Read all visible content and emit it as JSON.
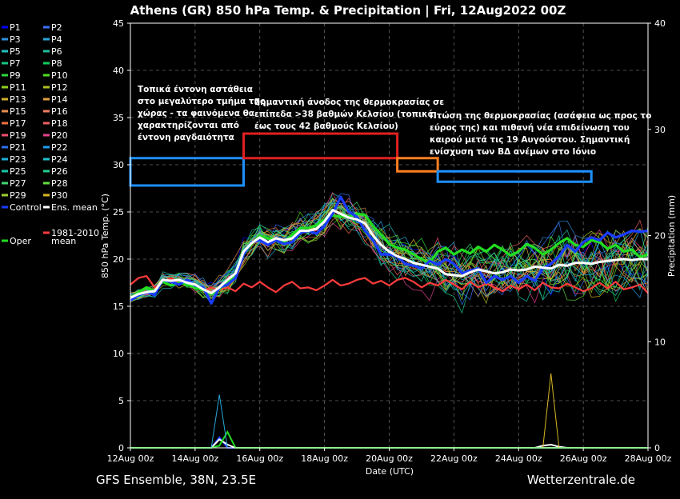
{
  "chart_data": {
    "type": "line",
    "title": "Athens  (GR)  850 hPa Temp. & Precipitation | Fri, 12Aug2022 00Z",
    "ylabel": "850 hPa Temp. (°C)",
    "y2label": "Precipitation (mm)",
    "xlabel": "Date (UTC)",
    "ylim": [
      0,
      45
    ],
    "y2lim": [
      0,
      40
    ],
    "yticks": [
      "0",
      "5",
      "10",
      "15",
      "20",
      "25",
      "30",
      "35",
      "40",
      "45"
    ],
    "y2ticks": [
      "0",
      "10",
      "20",
      "30",
      "40"
    ],
    "xticks": [
      "12Aug 00z",
      "14Aug 00z",
      "16Aug 00z",
      "18Aug 00z",
      "20Aug 00z",
      "22Aug 00z",
      "24Aug 00z",
      "26Aug 00z",
      "28Aug 00z"
    ],
    "x_days": [
      0,
      0.25,
      0.5,
      0.75,
      1,
      1.25,
      1.5,
      1.75,
      2,
      2.25,
      2.5,
      2.75,
      3,
      3.25,
      3.5,
      3.75,
      4,
      4.25,
      4.5,
      4.75,
      5,
      5.25,
      5.5,
      5.75,
      6,
      6.25,
      6.5,
      6.75,
      7,
      7.25,
      7.5,
      7.75,
      8,
      8.25,
      8.5,
      8.75,
      9,
      9.25,
      9.5,
      9.75,
      10,
      10.25,
      10.5,
      10.75,
      11,
      11.25,
      11.5,
      11.75,
      12,
      12.25,
      12.5,
      12.75,
      13,
      13.25,
      13.5,
      13.75,
      14,
      14.25,
      14.5,
      14.75,
      15,
      15.25,
      15.5,
      15.75,
      16
    ],
    "grid": true,
    "legend_position": "left-outside",
    "footer_left": "GFS Ensemble, 38N, 23.5E",
    "footer_right": "Wetterzentrale.de",
    "legend": [
      {
        "label": "P1",
        "color": "#0000ff"
      },
      {
        "label": "P2",
        "color": "#3f6fff"
      },
      {
        "label": "P3",
        "color": "#2f8fdf"
      },
      {
        "label": "P4",
        "color": "#27a7d7"
      },
      {
        "label": "P5",
        "color": "#1fbfbf"
      },
      {
        "label": "P6",
        "color": "#1fbf9f"
      },
      {
        "label": "P7",
        "color": "#17c77f"
      },
      {
        "label": "P8",
        "color": "#0fcf5f"
      },
      {
        "label": "P9",
        "color": "#2fd73f"
      },
      {
        "label": "P10",
        "color": "#4fdf1f"
      },
      {
        "label": "P11",
        "color": "#8fcf1f"
      },
      {
        "label": "P12",
        "color": "#afbf1f"
      },
      {
        "label": "P13",
        "color": "#cfaf2f"
      },
      {
        "label": "P14",
        "color": "#df9f3f"
      },
      {
        "label": "P15",
        "color": "#e78f4f"
      },
      {
        "label": "P16",
        "color": "#ef7f5f"
      },
      {
        "label": "P17",
        "color": "#ef6f3f"
      },
      {
        "label": "P18",
        "color": "#ef5f5f"
      },
      {
        "label": "P19",
        "color": "#ef4f6f"
      },
      {
        "label": "P20",
        "color": "#e73f8f"
      },
      {
        "label": "P21",
        "color": "#2f6fef"
      },
      {
        "label": "P22",
        "color": "#1f9fef"
      },
      {
        "label": "P23",
        "color": "#1fafd7"
      },
      {
        "label": "P24",
        "color": "#1fbfcf"
      },
      {
        "label": "P25",
        "color": "#17c7a7"
      },
      {
        "label": "P26",
        "color": "#1fcf8f"
      },
      {
        "label": "P27",
        "color": "#3fd76f"
      },
      {
        "label": "P28",
        "color": "#5fdf3f"
      },
      {
        "label": "P29",
        "color": "#9fcf2f"
      },
      {
        "label": "P30",
        "color": "#d7b71f"
      },
      {
        "label": "Control",
        "color": "#1a3cff"
      },
      {
        "label": "Ens. mean",
        "color": "#ffffff"
      },
      {
        "label": "Oper",
        "color": "#22dd22"
      },
      {
        "label": "1981-2010 mean",
        "color": "#ff3b3b"
      }
    ],
    "series": [
      {
        "name": "Control",
        "color": "#1a3cff",
        "width": 3.2,
        "values": [
          15.6,
          16.2,
          16.5,
          16.2,
          17.8,
          17.6,
          17.3,
          17.8,
          17.2,
          17.0,
          15.3,
          17.0,
          17.3,
          18.0,
          20.5,
          21.8,
          22.0,
          21.5,
          22.0,
          21.6,
          21.8,
          22.8,
          23.0,
          22.7,
          23.5,
          24.8,
          26.6,
          25.0,
          24.5,
          23.0,
          22.0,
          20.5,
          20.5,
          20.3,
          19.5,
          19.3,
          19.0,
          19.8,
          19.4,
          20.0,
          19.5,
          18.5,
          18.8,
          19.0,
          17.5,
          18.2,
          17.8,
          18.2,
          17.5,
          18.2,
          17.7,
          19.0,
          19.5,
          20.3,
          21.5,
          20.8,
          21.8,
          22.3,
          22.0,
          22.8,
          22.3,
          22.6,
          23.0,
          22.9,
          23.0
        ]
      },
      {
        "name": "Ens. mean",
        "color": "#ffffff",
        "width": 3,
        "values": [
          15.9,
          16.3,
          16.5,
          16.6,
          17.8,
          17.7,
          17.8,
          17.5,
          17.3,
          16.8,
          16.4,
          17.0,
          17.8,
          18.5,
          20.8,
          21.7,
          22.3,
          21.8,
          22.2,
          22.0,
          22.2,
          23.0,
          23.0,
          23.2,
          24.0,
          25.2,
          24.8,
          24.4,
          24.2,
          23.8,
          22.5,
          21.5,
          20.8,
          20.3,
          20.0,
          19.6,
          19.4,
          19.2,
          19.0,
          18.4,
          18.3,
          18.2,
          18.6,
          18.9,
          18.7,
          18.5,
          18.6,
          18.9,
          18.8,
          18.9,
          19.2,
          19.1,
          19.0,
          19.4,
          19.3,
          19.6,
          19.6,
          19.5,
          19.7,
          19.8,
          19.9,
          20.0,
          19.9,
          20.0,
          20.0
        ]
      },
      {
        "name": "Oper",
        "color": "#22dd22",
        "width": 3.2,
        "values": [
          15.9,
          16.5,
          17.0,
          16.6,
          17.6,
          17.2,
          17.5,
          17.3,
          17.0,
          16.7,
          16.3,
          16.8,
          17.6,
          18.3,
          20.5,
          21.6,
          22.5,
          22.2,
          22.1,
          21.8,
          22.6,
          23.3,
          23.3,
          23.6,
          24.2,
          24.6,
          24.5,
          24.5,
          24.8,
          24.7,
          23.5,
          22.6,
          21.6,
          21.2,
          21.0,
          20.5,
          20.0,
          19.6,
          20.8,
          21.2,
          20.5,
          21.0,
          20.6,
          21.3,
          20.8,
          21.5,
          21.0,
          20.4,
          20.8,
          21.6,
          21.2,
          20.5,
          21.0,
          21.7,
          22.2,
          21.5,
          21.3,
          22.0,
          21.8,
          21.1,
          21.5,
          20.8,
          21.0,
          20.2,
          20.5
        ]
      },
      {
        "name": "1981-2010 mean",
        "color": "#ff3b3b",
        "width": 2.2,
        "values": [
          17.3,
          18.0,
          18.2,
          17.0,
          17.5,
          18.0,
          17.5,
          17.8,
          17.2,
          16.6,
          17.0,
          16.7,
          17.0,
          16.6,
          17.4,
          17.0,
          17.6,
          17.0,
          16.5,
          17.2,
          17.6,
          16.9,
          17.0,
          16.7,
          17.2,
          17.8,
          17.2,
          17.4,
          17.8,
          18.0,
          17.4,
          17.7,
          17.2,
          17.8,
          18.0,
          17.6,
          17.0,
          17.5,
          17.2,
          17.8,
          17.3,
          16.8,
          17.6,
          17.0,
          17.4,
          17.0,
          16.6,
          17.2,
          16.8,
          17.3,
          16.7,
          17.5,
          17.0,
          16.9,
          17.4,
          17.0,
          16.6,
          16.9,
          17.5,
          16.9,
          17.6,
          16.8,
          17.0,
          17.3,
          16.4
        ]
      }
    ],
    "precip_mm": {
      "Control": [
        0,
        0,
        0,
        0,
        0,
        0,
        0,
        0,
        0,
        0,
        0,
        1.0,
        0,
        0,
        0,
        0,
        0,
        0,
        0,
        0,
        0,
        0,
        0,
        0,
        0,
        0,
        0,
        0,
        0,
        0,
        0,
        0,
        0,
        0,
        0,
        0,
        0,
        0,
        0,
        0,
        0,
        0,
        0,
        0,
        0,
        0,
        0,
        0,
        0,
        0,
        0,
        0,
        0,
        0,
        0,
        0,
        0,
        0,
        0,
        0,
        0,
        0,
        0,
        0,
        0
      ],
      "Ens. mean": [
        0,
        0,
        0,
        0,
        0,
        0,
        0,
        0,
        0,
        0,
        0,
        0.8,
        0.3,
        0,
        0,
        0,
        0,
        0,
        0,
        0,
        0,
        0,
        0,
        0,
        0,
        0,
        0,
        0,
        0,
        0,
        0,
        0,
        0,
        0,
        0,
        0,
        0,
        0,
        0,
        0,
        0,
        0,
        0,
        0,
        0,
        0,
        0,
        0,
        0,
        0,
        0,
        0.2,
        0.3,
        0.1,
        0,
        0,
        0,
        0,
        0,
        0,
        0,
        0,
        0,
        0,
        0
      ],
      "Oper": [
        0,
        0,
        0,
        0,
        0,
        0,
        0,
        0,
        0,
        0,
        0,
        0.2,
        1.5,
        0,
        0,
        0,
        0,
        0,
        0,
        0,
        0,
        0,
        0,
        0,
        0,
        0,
        0,
        0,
        0,
        0,
        0,
        0,
        0,
        0,
        0,
        0,
        0,
        0,
        0,
        0,
        0,
        0,
        0,
        0,
        0,
        0,
        0,
        0,
        0,
        0,
        0,
        0,
        0,
        0,
        0,
        0,
        0,
        0,
        0,
        0,
        0,
        0,
        0,
        0,
        0
      ],
      "P4": [
        0,
        0,
        0,
        0,
        0,
        0,
        0,
        0,
        0,
        0,
        0,
        5.0,
        0,
        0,
        0,
        0,
        0,
        0,
        0,
        0,
        0,
        0,
        0,
        0,
        0,
        0,
        0,
        0,
        0,
        0,
        0,
        0,
        0,
        0,
        0,
        0,
        0,
        0,
        0,
        0,
        0,
        0,
        0,
        0,
        0,
        0,
        0,
        0,
        0,
        0,
        0,
        0,
        0,
        0,
        0,
        0,
        0,
        0,
        0,
        0,
        0,
        0,
        0,
        0,
        0
      ],
      "P30": [
        0,
        0,
        0,
        0,
        0,
        0,
        0,
        0,
        0,
        0,
        0,
        0,
        0,
        0,
        0,
        0,
        0,
        0,
        0,
        0,
        0,
        0,
        0,
        0,
        0,
        0,
        0,
        0,
        0,
        0,
        0,
        0,
        0,
        0,
        0,
        0,
        0,
        0,
        0,
        0,
        0,
        0,
        0,
        0,
        0,
        0,
        0,
        0,
        0,
        0,
        0,
        0,
        7.0,
        0,
        0,
        0,
        0,
        0,
        0,
        0,
        0,
        0,
        0,
        0,
        0
      ]
    },
    "annotations": [
      {
        "text": "Τοπικά έντονη αστάθεια στο μεγαλύτερο τμήμα της χώρας - τα φαινόμενα θα χαρακτηρίζονται από έντονη ραγδαιότητα",
        "color": "#1e90ff",
        "box": {
          "x0": 0.0,
          "x1": 3.5,
          "y0": 27.8,
          "y1": 30.7
        }
      },
      {
        "text": "Σημαντική άνοδος της θερμοκρασίας σε επίπεδα >38 βαθμών Κελσίου (τοπικά έως τους 42 βαθμούς Κελσίου)",
        "color": "#e02020",
        "box": {
          "x0": 3.5,
          "x1": 8.25,
          "y0": 30.7,
          "y1": 33.3
        }
      },
      {
        "text": "Πτώση της θερμοκρασίας (ασάφεια ως προς το εύρος της) και πιθανή νέα επιδείνωση του καιρού μετά τις 19 Αυγούστου. Σημαντική ενίσχυση των ΒΔ ανέμων στο Ιόνιο",
        "color": "#ff7f1f",
        "box": {
          "x0": 8.25,
          "x1": 9.5,
          "y0": 29.3,
          "y1": 30.7
        }
      },
      {
        "text": "",
        "color": "#1e90ff",
        "box": {
          "x0": 9.5,
          "x1": 14.25,
          "y0": 28.2,
          "y1": 29.3
        }
      }
    ]
  }
}
